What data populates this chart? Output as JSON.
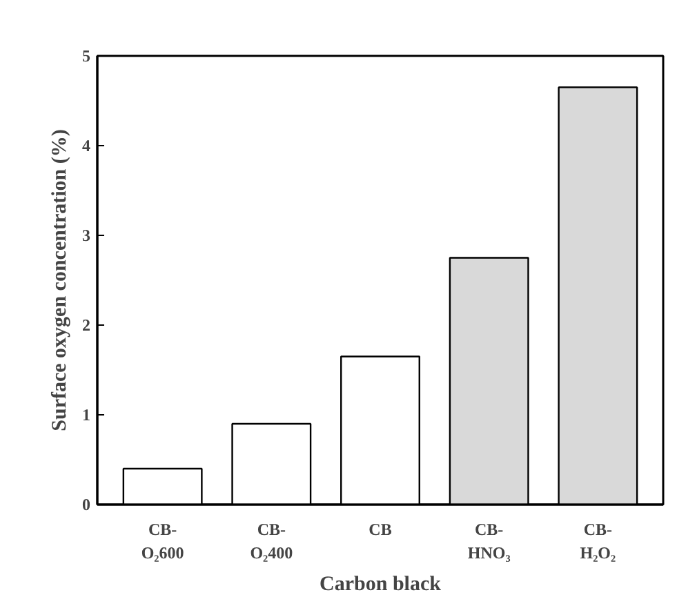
{
  "chart_data": {
    "type": "bar",
    "xlabel": "Carbon black",
    "ylabel": "Surface oxygen concentration (%)",
    "categories": [
      "CB-\nO₂600",
      "CB-\nO₂400",
      "CB",
      "CB-\nHNO₃",
      "CB-\nH₂O₂"
    ],
    "values": [
      0.4,
      0.9,
      1.65,
      2.75,
      4.65
    ],
    "colors": [
      "#ffffff",
      "#ffffff",
      "#ffffff",
      "#d9d9d9",
      "#d9d9d9"
    ],
    "ylim": [
      0,
      5
    ],
    "yticks": [
      0,
      1,
      2,
      3,
      4,
      5
    ],
    "grid": false
  }
}
